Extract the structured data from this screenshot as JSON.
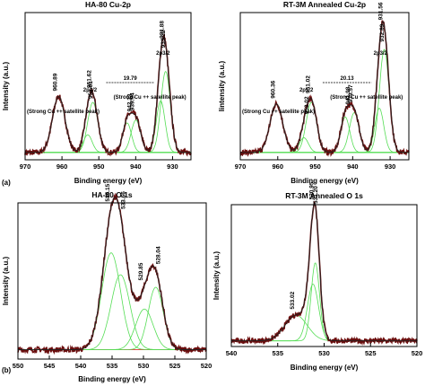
{
  "panel_labels": [
    "(a)",
    "(b)"
  ],
  "chart_data": [
    {
      "id": "cu-ha80",
      "type": "line",
      "title": "HA-80 Cu-2p",
      "xlabel": "Binding energy (eV)",
      "ylabel": "Intensity (a.u.)",
      "xlim": [
        970,
        925
      ],
      "x_ticks": [
        970,
        960,
        950,
        940,
        930
      ],
      "colors": {
        "data": "#6b0e0e",
        "fit": "#222222",
        "components": "#55dd55"
      },
      "peak_labels": [
        "960.89",
        "953.01",
        "951.62",
        "942.33",
        "939.94",
        "933.22",
        "931.88"
      ],
      "annotations": [
        "2p1/2",
        "2p3/2",
        "19.79",
        "(Strong Cu ++ satellite peak)",
        "(Strong Cu ++ satellite peak)"
      ],
      "components": [
        {
          "center": 960.89,
          "height": 0.38,
          "width": 1.7
        },
        {
          "center": 953.01,
          "height": 0.12,
          "width": 1.2
        },
        {
          "center": 951.62,
          "height": 0.34,
          "width": 1.4
        },
        {
          "center": 942.33,
          "height": 0.2,
          "width": 1.2
        },
        {
          "center": 939.94,
          "height": 0.22,
          "width": 1.3
        },
        {
          "center": 933.22,
          "height": 0.35,
          "width": 1.2
        },
        {
          "center": 931.88,
          "height": 0.55,
          "width": 1.3
        }
      ],
      "baseline": 0.05
    },
    {
      "id": "cu-rt3m",
      "type": "line",
      "title": "RT-3M Annealed Cu-2p",
      "xlabel": "Binding energy (eV)",
      "ylabel": "Iintensity (a.u.)",
      "xlim": [
        970,
        925
      ],
      "x_ticks": [
        970,
        960,
        950,
        940,
        930
      ],
      "colors": {
        "data": "#6b0e0e",
        "fit": "#222222",
        "components": "#55dd55"
      },
      "peak_labels": [
        "960.36",
        "953.02",
        "951.02",
        "941.98",
        "939.57",
        "932.89",
        "931.56"
      ],
      "annotations": [
        "2p1/2",
        "2p3/2",
        "20.13",
        "(Strong Cu ++ satellite peak)",
        "(Strong Cu ++ satellite peak)"
      ],
      "components": [
        {
          "center": 960.36,
          "height": 0.33,
          "width": 1.7
        },
        {
          "center": 953.02,
          "height": 0.1,
          "width": 1.2
        },
        {
          "center": 951.02,
          "height": 0.34,
          "width": 1.4
        },
        {
          "center": 941.98,
          "height": 0.24,
          "width": 1.2
        },
        {
          "center": 939.57,
          "height": 0.27,
          "width": 1.3
        },
        {
          "center": 932.89,
          "height": 0.3,
          "width": 1.2
        },
        {
          "center": 931.56,
          "height": 0.7,
          "width": 1.3
        }
      ],
      "baseline": 0.05
    },
    {
      "id": "o-ha80",
      "type": "line",
      "title": "HA-80 O 1s",
      "xlabel": "Binding energy (eV)",
      "ylabel": "Intensity (a.u.)",
      "xlim": [
        550,
        520
      ],
      "x_ticks": [
        550,
        545,
        540,
        535,
        530,
        525,
        520
      ],
      "colors": {
        "data": "#6b0e0e",
        "fit": "#222222",
        "components": "#55dd55",
        "baseline": "#dd3333"
      },
      "peak_labels": [
        "535.15",
        "533.66",
        "529.85",
        "528.04"
      ],
      "components": [
        {
          "center": 535.15,
          "height": 0.62,
          "width": 1.5
        },
        {
          "center": 533.66,
          "height": 0.48,
          "width": 1.5
        },
        {
          "center": 529.85,
          "height": 0.26,
          "width": 1.4
        },
        {
          "center": 528.04,
          "height": 0.4,
          "width": 1.2
        }
      ],
      "baseline": 0.06
    },
    {
      "id": "o-rt3m",
      "type": "line",
      "title": "RT-3M Annealed O 1s",
      "xlabel": "Binding energy (eV)",
      "ylabel": "Intensity (a.u.)",
      "xlim": [
        540,
        520
      ],
      "x_ticks": [
        540,
        535,
        530,
        525,
        520
      ],
      "colors": {
        "data": "#6b0e0e",
        "fit": "#222222",
        "components": "#55dd55"
      },
      "peak_labels": [
        "533.02",
        "531.20",
        "530.95"
      ],
      "components": [
        {
          "center": 533.02,
          "height": 0.18,
          "width": 1.2
        },
        {
          "center": 531.2,
          "height": 0.4,
          "width": 0.6
        },
        {
          "center": 530.95,
          "height": 0.55,
          "width": 0.45
        }
      ],
      "baseline": 0.04
    }
  ]
}
